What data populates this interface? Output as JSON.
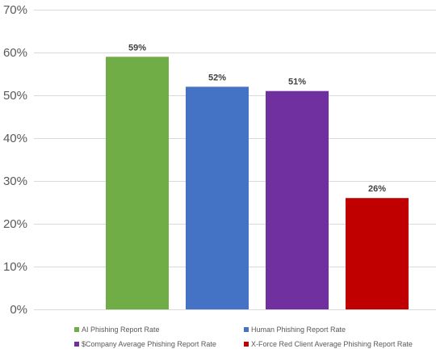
{
  "chart_data": {
    "type": "bar",
    "categories": [
      "AI Phishing Report Rate",
      "Human Phishing Report Rate",
      "$Company Average Phishing Report Rate",
      "X-Force Red Client Average Phishing Report Rate"
    ],
    "values": [
      59,
      52,
      51,
      26
    ],
    "value_labels": [
      "59%",
      "52%",
      "51%",
      "26%"
    ],
    "colors": [
      "#70AD47",
      "#4472C4",
      "#7030A0",
      "#C00000"
    ],
    "ylim": [
      0,
      70
    ],
    "y_ticks": [
      0,
      10,
      20,
      30,
      40,
      50,
      60,
      70
    ],
    "y_tick_labels": [
      "0%",
      "10%",
      "20%",
      "30%",
      "40%",
      "50%",
      "60%",
      "70%"
    ],
    "grid": true,
    "legend_position": "bottom",
    "gridline_color": "#d9d9d9"
  },
  "legend": {
    "items": [
      {
        "label": "AI Phishing Report Rate",
        "color": "#70AD47"
      },
      {
        "label": "Human Phishing Report Rate",
        "color": "#4472C4"
      },
      {
        "label": "$Company Average Phishing Report Rate",
        "color": "#7030A0"
      },
      {
        "label": "X-Force Red Client Average Phishing Report Rate",
        "color": "#C00000"
      }
    ]
  }
}
